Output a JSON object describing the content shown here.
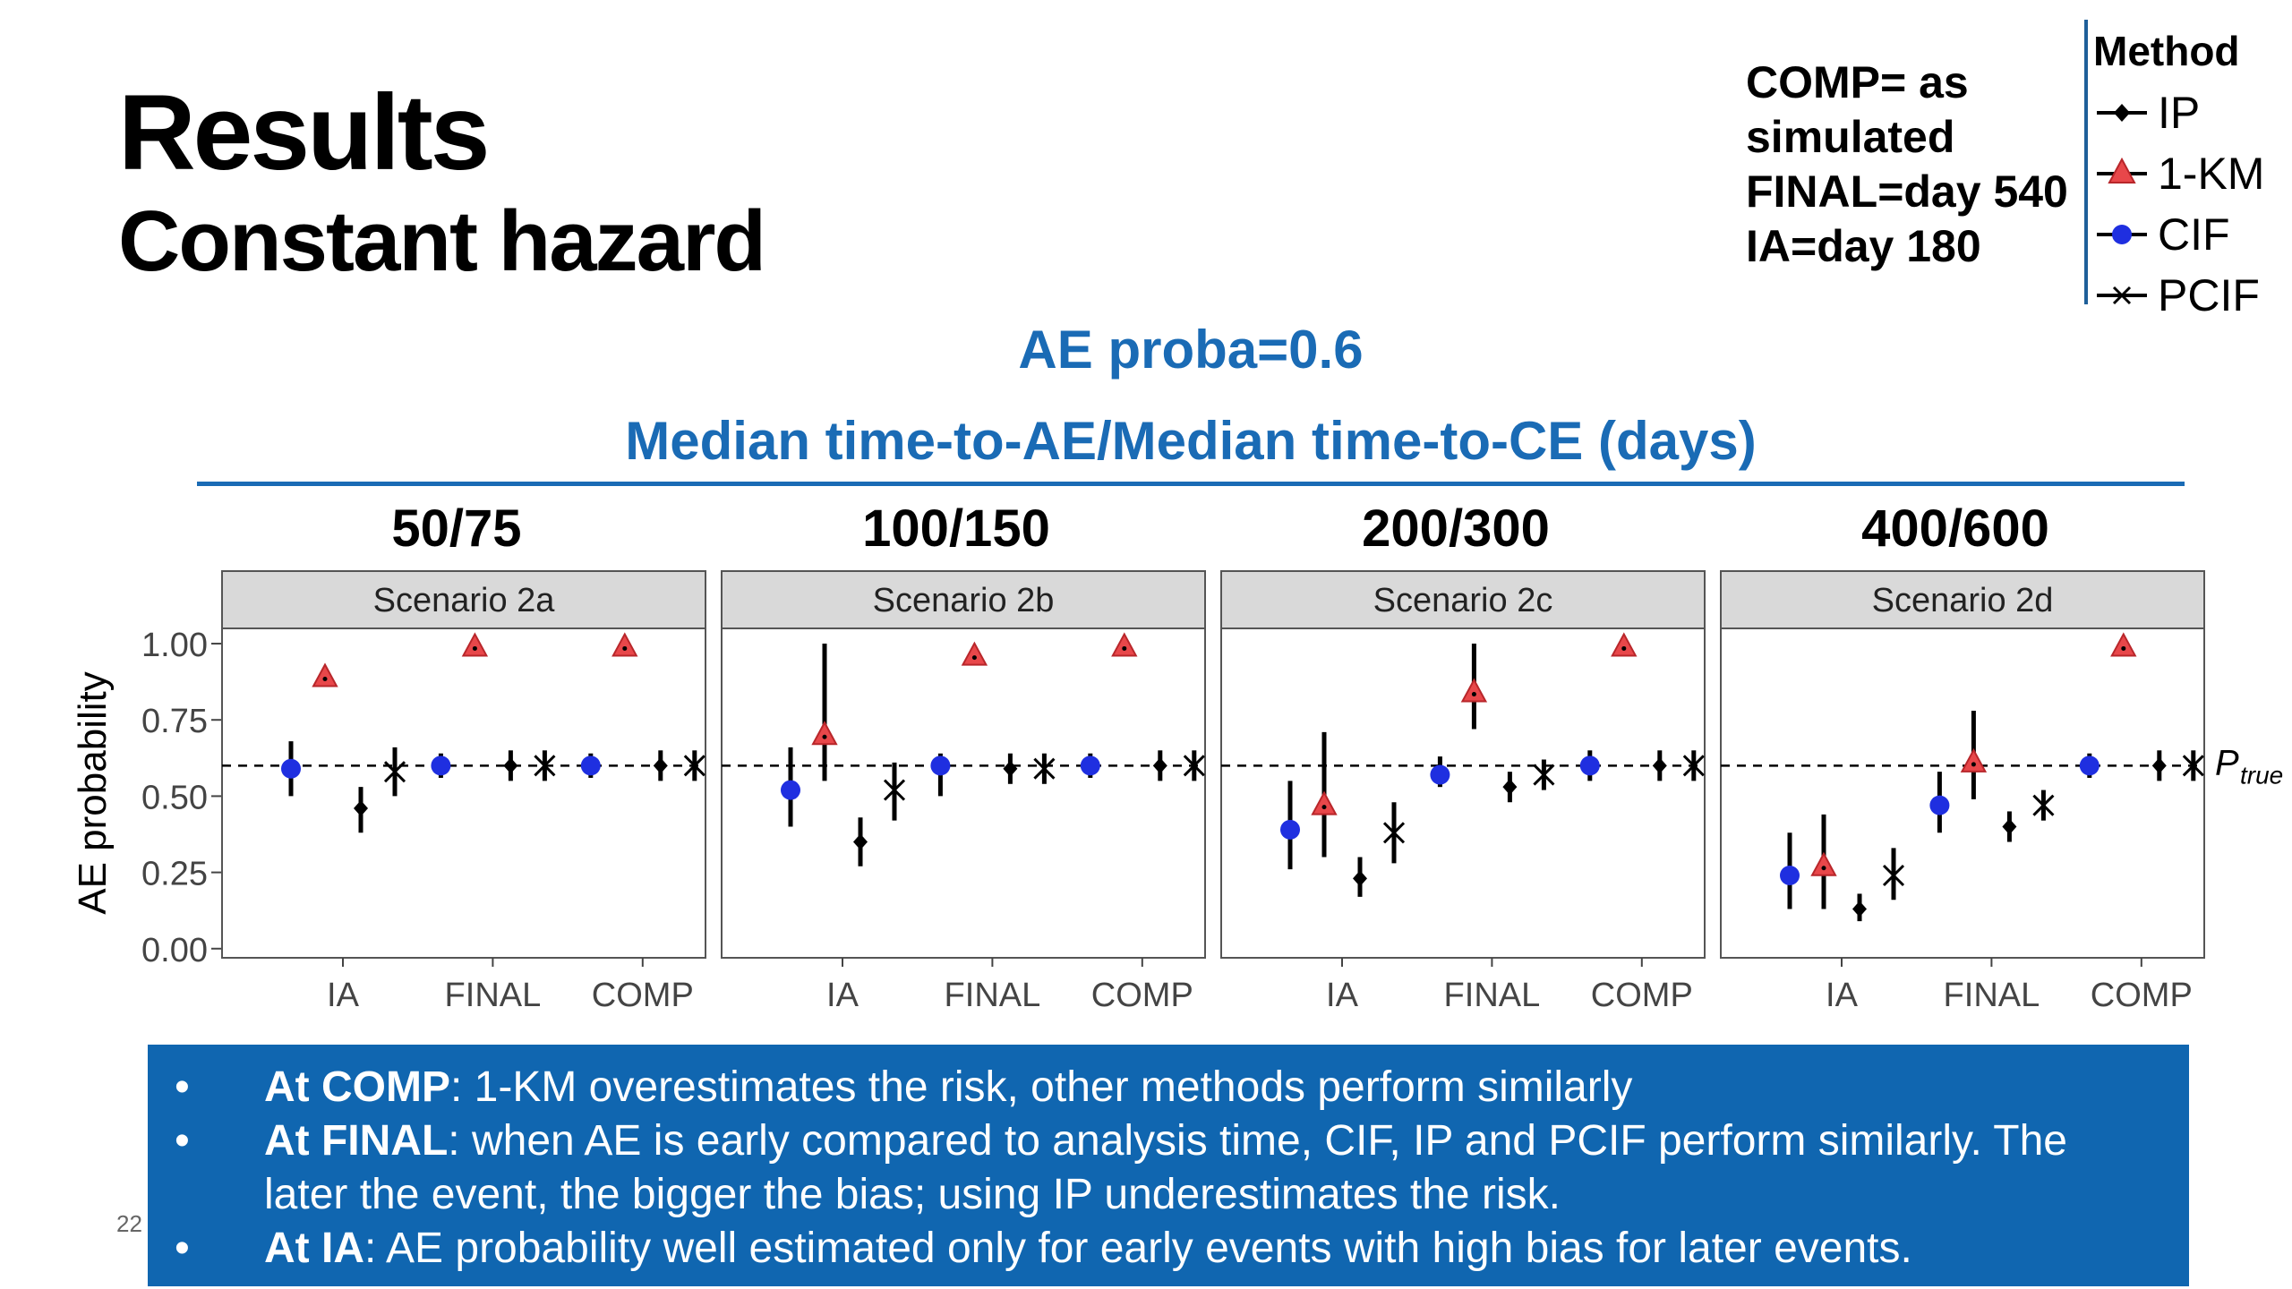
{
  "title": "Results",
  "subtitle": "Constant hazard",
  "note_lines": [
    "COMP= as",
    "simulated",
    "FINAL=day 540",
    "IA=day 180"
  ],
  "legend": {
    "title": "Method",
    "items": [
      {
        "label": "IP",
        "marker": "diamond",
        "color": "#000000"
      },
      {
        "label": "1-KM",
        "marker": "triangle",
        "color": "#e8474a"
      },
      {
        "label": "CIF",
        "marker": "circle",
        "color": "#1f2fe0"
      },
      {
        "label": "PCIF",
        "marker": "star",
        "color": "#000000"
      }
    ]
  },
  "ae_heading": "AE proba=0.6",
  "median_heading": "Median time-to-AE/Median time-to-CE (days)",
  "page_number": "22",
  "chart_data": {
    "type": "scatter",
    "ylabel": "AE probability",
    "ylim": [
      -0.03,
      1.05
    ],
    "yticks": [
      "0.00",
      "0.25",
      "0.50",
      "0.75",
      "1.00"
    ],
    "ytick_values": [
      0,
      0.25,
      0.5,
      0.75,
      1.0
    ],
    "categories": [
      "IA",
      "FINAL",
      "COMP"
    ],
    "reference_line": {
      "value": 0.6,
      "label": "P",
      "label_sub": "true",
      "style": "dashed"
    },
    "panels": [
      {
        "header": "50/75",
        "strip": "Scenario 2a",
        "series": {
          "CIF": [
            {
              "y": 0.59,
              "lo": 0.5,
              "hi": 0.68
            },
            {
              "y": 0.6,
              "lo": 0.56,
              "hi": 0.64
            },
            {
              "y": 0.6,
              "lo": 0.56,
              "hi": 0.64
            }
          ],
          "1-KM": [
            {
              "y": 0.89,
              "lo": 0.89,
              "hi": 0.89
            },
            {
              "y": 0.99,
              "lo": 0.99,
              "hi": 0.99
            },
            {
              "y": 0.99,
              "lo": 0.99,
              "hi": 0.99
            }
          ],
          "IP": [
            {
              "y": 0.46,
              "lo": 0.38,
              "hi": 0.53
            },
            {
              "y": 0.6,
              "lo": 0.55,
              "hi": 0.65
            },
            {
              "y": 0.6,
              "lo": 0.55,
              "hi": 0.65
            }
          ],
          "PCIF": [
            {
              "y": 0.58,
              "lo": 0.5,
              "hi": 0.66
            },
            {
              "y": 0.6,
              "lo": 0.55,
              "hi": 0.65
            },
            {
              "y": 0.6,
              "lo": 0.55,
              "hi": 0.65
            }
          ]
        }
      },
      {
        "header": "100/150",
        "strip": "Scenario 2b",
        "series": {
          "CIF": [
            {
              "y": 0.52,
              "lo": 0.4,
              "hi": 0.66
            },
            {
              "y": 0.6,
              "lo": 0.5,
              "hi": 0.64
            },
            {
              "y": 0.6,
              "lo": 0.56,
              "hi": 0.64
            }
          ],
          "1-KM": [
            {
              "y": 0.7,
              "lo": 0.55,
              "hi": 1.0
            },
            {
              "y": 0.96,
              "lo": 0.96,
              "hi": 0.96
            },
            {
              "y": 0.99,
              "lo": 0.99,
              "hi": 0.99
            }
          ],
          "IP": [
            {
              "y": 0.35,
              "lo": 0.27,
              "hi": 0.43
            },
            {
              "y": 0.59,
              "lo": 0.54,
              "hi": 0.64
            },
            {
              "y": 0.6,
              "lo": 0.55,
              "hi": 0.65
            }
          ],
          "PCIF": [
            {
              "y": 0.52,
              "lo": 0.42,
              "hi": 0.61
            },
            {
              "y": 0.59,
              "lo": 0.54,
              "hi": 0.64
            },
            {
              "y": 0.6,
              "lo": 0.55,
              "hi": 0.65
            }
          ]
        }
      },
      {
        "header": "200/300",
        "strip": "Scenario 2c",
        "series": {
          "CIF": [
            {
              "y": 0.39,
              "lo": 0.26,
              "hi": 0.55
            },
            {
              "y": 0.57,
              "lo": 0.53,
              "hi": 0.63
            },
            {
              "y": 0.6,
              "lo": 0.55,
              "hi": 0.65
            }
          ],
          "1-KM": [
            {
              "y": 0.47,
              "lo": 0.3,
              "hi": 0.71
            },
            {
              "y": 0.84,
              "lo": 0.72,
              "hi": 1.0
            },
            {
              "y": 0.99,
              "lo": 0.99,
              "hi": 0.99
            }
          ],
          "IP": [
            {
              "y": 0.23,
              "lo": 0.17,
              "hi": 0.3
            },
            {
              "y": 0.53,
              "lo": 0.48,
              "hi": 0.58
            },
            {
              "y": 0.6,
              "lo": 0.55,
              "hi": 0.65
            }
          ],
          "PCIF": [
            {
              "y": 0.38,
              "lo": 0.28,
              "hi": 0.48
            },
            {
              "y": 0.57,
              "lo": 0.52,
              "hi": 0.62
            },
            {
              "y": 0.6,
              "lo": 0.55,
              "hi": 0.65
            }
          ]
        }
      },
      {
        "header": "400/600",
        "strip": "Scenario 2d",
        "series": {
          "CIF": [
            {
              "y": 0.24,
              "lo": 0.13,
              "hi": 0.38
            },
            {
              "y": 0.47,
              "lo": 0.38,
              "hi": 0.58
            },
            {
              "y": 0.6,
              "lo": 0.56,
              "hi": 0.64
            }
          ],
          "1-KM": [
            {
              "y": 0.27,
              "lo": 0.13,
              "hi": 0.44
            },
            {
              "y": 0.61,
              "lo": 0.49,
              "hi": 0.78
            },
            {
              "y": 0.99,
              "lo": 0.99,
              "hi": 0.99
            }
          ],
          "IP": [
            {
              "y": 0.13,
              "lo": 0.09,
              "hi": 0.18
            },
            {
              "y": 0.4,
              "lo": 0.35,
              "hi": 0.45
            },
            {
              "y": 0.6,
              "lo": 0.55,
              "hi": 0.65
            }
          ],
          "PCIF": [
            {
              "y": 0.24,
              "lo": 0.16,
              "hi": 0.33
            },
            {
              "y": 0.47,
              "lo": 0.42,
              "hi": 0.52
            },
            {
              "y": 0.6,
              "lo": 0.55,
              "hi": 0.65
            }
          ]
        }
      }
    ]
  },
  "bullets": [
    {
      "bold": "At COMP",
      "text": ": 1-KM overestimates the risk, other methods perform similarly"
    },
    {
      "bold": "At FINAL",
      "text": ": when AE is early compared to analysis time, CIF, IP and PCIF perform similarly. The later the event, the bigger the bias; using IP underestimates the risk."
    },
    {
      "bold": "At IA",
      "text": ": AE probability well estimated only for early events with high bias for later events."
    }
  ],
  "bullet_glyph": "•"
}
